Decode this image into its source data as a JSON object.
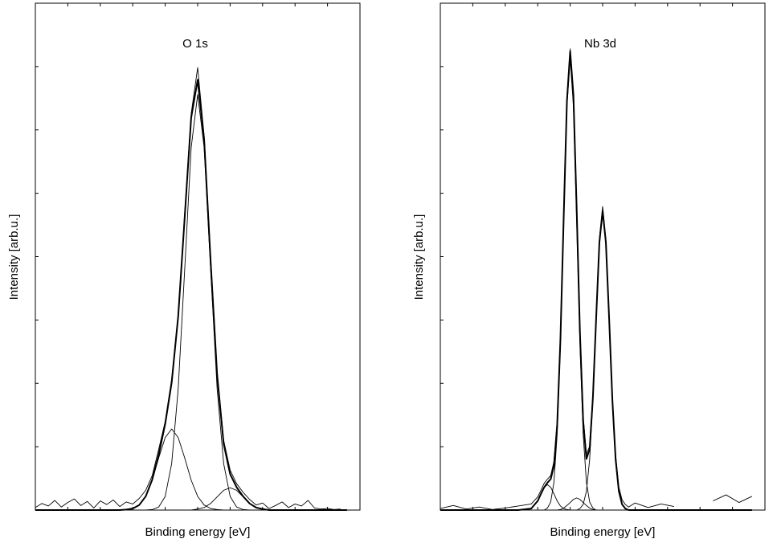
{
  "chart_data": [
    {
      "type": "line",
      "title": "O 1s",
      "x_label": "Binding energy [eV]",
      "y_label": "Intensity [arb.u.]",
      "xlim": [
        0,
        100
      ],
      "ylim": [
        0,
        100
      ],
      "xticks": [
        10,
        20,
        30,
        40,
        50,
        60,
        70,
        80,
        90
      ],
      "yticks": [
        12.5,
        25,
        37.5,
        50,
        62.5,
        75,
        87.5
      ],
      "x": [
        0,
        2,
        4,
        6,
        8,
        10,
        12,
        14,
        16,
        18,
        20,
        22,
        24,
        26,
        28,
        30,
        32,
        34,
        36,
        38,
        40,
        42,
        44,
        46,
        48,
        50,
        52,
        54,
        56,
        58,
        60,
        62,
        64,
        66,
        68,
        70,
        72,
        74,
        76,
        78,
        80,
        82,
        84,
        86,
        88,
        90,
        92,
        94,
        96
      ],
      "series": [
        {
          "color": "#000000",
          "values": [
            0.5,
            1.3,
            0.8,
            1.9,
            0.6,
            1.5,
            2.2,
            0.9,
            1.7,
            0.4,
            1.8,
            1.1,
            2.0,
            0.7,
            1.6,
            1.2,
            2.3,
            3.9,
            6.8,
            12.0,
            17.5,
            25.9,
            38.6,
            58.5,
            78.2,
            87.3,
            73.8,
            49.9,
            27.4,
            13.8,
            7.9,
            5.2,
            3.5,
            2.1,
            1.0,
            1.4,
            0.3,
            0.9,
            1.6,
            0.5,
            1.2,
            0.8,
            1.9,
            0.4,
            0.2,
            0.3,
            0.1,
            0.2,
            null
          ]
        },
        {
          "color": "#000000",
          "values": [
            0,
            0,
            0,
            0,
            0,
            0,
            0,
            0,
            0,
            0,
            0,
            0,
            0,
            0,
            0.1,
            0.3,
            1.0,
            2.7,
            6.0,
            10.9,
            17.0,
            25.2,
            38.2,
            57.7,
            77.4,
            84.9,
            73.0,
            49.0,
            26.6,
            13.1,
            7.1,
            4.5,
            2.7,
            1.3,
            0.5,
            0.2,
            0,
            0,
            0,
            0,
            0,
            0,
            0,
            0,
            0,
            0,
            0,
            0,
            0
          ]
        },
        {
          "color": "#000000",
          "values": [
            0,
            0,
            0,
            0,
            0,
            0,
            0,
            0,
            0,
            0,
            0,
            0,
            0,
            0,
            0,
            0,
            0,
            0,
            0.1,
            0.6,
            2.7,
            9.2,
            23.9,
            47.4,
            71.5,
            82,
            71.5,
            47.4,
            23.9,
            9.2,
            2.7,
            0.6,
            0.1,
            0,
            0,
            0,
            0,
            0,
            0,
            0,
            0,
            0,
            0,
            0,
            0,
            0,
            0,
            0,
            0
          ]
        },
        {
          "color": "#000000",
          "values": [
            0,
            0,
            0,
            0,
            0,
            0,
            0,
            0,
            0,
            0,
            0,
            0,
            0,
            0,
            0.1,
            0.3,
            1.0,
            2.7,
            5.9,
            10.3,
            14.3,
            16,
            14.3,
            10.3,
            5.9,
            2.7,
            1.0,
            0.3,
            0.1,
            0,
            0,
            0,
            0,
            0,
            0,
            0,
            0,
            0,
            0,
            0,
            0,
            0,
            0,
            0,
            0,
            0,
            0,
            0,
            0
          ]
        },
        {
          "color": "#000000",
          "values": [
            0,
            0,
            0,
            0,
            0,
            0,
            0,
            0,
            0,
            0,
            0,
            0,
            0,
            0,
            0,
            0,
            0,
            0,
            0,
            0,
            0,
            0,
            0,
            0,
            0,
            0.2,
            0.5,
            1.3,
            2.6,
            3.9,
            4.4,
            3.9,
            2.6,
            1.3,
            0.5,
            0.2,
            0,
            0,
            0,
            0,
            0,
            0,
            0,
            0,
            0,
            0,
            0,
            0,
            0
          ]
        }
      ]
    },
    {
      "type": "line",
      "title": "Nb 3d",
      "x_label": "Binding energy [eV]",
      "y_label": "Intensity [arb.u.]",
      "xlim": [
        0,
        100
      ],
      "ylim": [
        0,
        100
      ],
      "xticks": [
        10,
        20,
        30,
        40,
        50,
        60,
        70,
        80,
        90
      ],
      "yticks": [
        12.5,
        25,
        37.5,
        50,
        62.5,
        75,
        87.5
      ],
      "x": [
        0,
        4,
        8,
        12,
        16,
        20,
        24,
        28,
        30,
        31,
        32,
        33,
        34,
        35,
        36,
        37,
        38,
        39,
        40,
        41,
        42,
        43,
        44,
        45,
        46,
        47,
        48,
        49,
        50,
        51,
        52,
        53,
        54,
        55,
        56,
        57,
        58,
        60,
        64,
        68,
        72,
        76,
        80,
        84,
        88,
        92,
        96
      ],
      "series": [
        {
          "color": "#000000",
          "values": [
            0.3,
            0.9,
            0.2,
            0.6,
            0.1,
            0.4,
            0.8,
            1.2,
            2.6,
            3.9,
            5.3,
            6.1,
            6.8,
            9.6,
            17.5,
            34.6,
            58.3,
            81.4,
            91.0,
            82.5,
            60.1,
            35.9,
            18.4,
            11.0,
            12.6,
            23.1,
            38.5,
            53.6,
            59.9,
            53.4,
            38.6,
            22.4,
            10.9,
            4.5,
            2.0,
            1.1,
            0.6,
            1.4,
            0.5,
            1.2,
            0.7,
            null,
            null,
            1.8,
            3.0,
            1.5,
            2.7
          ]
        },
        {
          "color": "#000000",
          "values": [
            0,
            0,
            0,
            0,
            0,
            0,
            0,
            0.3,
            1.8,
            3.2,
            4.5,
            5.4,
            6.1,
            8.7,
            16.8,
            33.7,
            57.7,
            80.7,
            90.5,
            81.8,
            59.4,
            35.2,
            17.6,
            10.1,
            12.0,
            22.2,
            37.8,
            52.8,
            59,
            52.8,
            37.8,
            21.7,
            10.0,
            3.7,
            1.1,
            0.3,
            0,
            0,
            0,
            0,
            0,
            0,
            0,
            0,
            0,
            0,
            0
          ]
        },
        {
          "color": "#000000",
          "values": [
            0,
            0,
            0,
            0,
            0,
            0,
            0,
            0,
            0,
            0,
            0,
            0.4,
            1.6,
            5.5,
            15,
            32.8,
            57,
            79.7,
            89,
            79.7,
            57,
            32.8,
            15,
            5.5,
            1.6,
            0.4,
            0,
            0,
            0,
            0,
            0,
            0,
            0,
            0,
            0,
            0,
            0,
            0,
            0,
            0,
            0,
            0,
            0,
            0,
            0,
            0,
            0
          ]
        },
        {
          "color": "#000000",
          "values": [
            0,
            0,
            0,
            0,
            0,
            0,
            0,
            0,
            0,
            0,
            0,
            0,
            0,
            0,
            0,
            0,
            0,
            0,
            0,
            0,
            0,
            0.3,
            1.1,
            3.7,
            10.0,
            21.7,
            37.8,
            52.8,
            59,
            52.8,
            37.8,
            21.7,
            10.0,
            3.7,
            1.1,
            0.3,
            0,
            0,
            0,
            0,
            0,
            0,
            0,
            0,
            0,
            0,
            0
          ]
        },
        {
          "color": "#000000",
          "values": [
            0,
            0,
            0,
            0,
            0,
            0,
            0,
            0.3,
            1.8,
            3.2,
            4.5,
            5,
            4.5,
            3.2,
            1.8,
            0.8,
            0.3,
            0.1,
            0,
            0,
            0,
            0,
            0,
            0,
            0,
            0,
            0,
            0,
            0,
            0,
            0,
            0,
            0,
            0,
            0,
            0,
            0,
            0,
            0,
            0,
            0,
            0,
            0,
            0,
            0,
            0,
            0
          ]
        },
        {
          "color": "#000000",
          "values": [
            0,
            0,
            0,
            0,
            0,
            0,
            0,
            0,
            0,
            0,
            0,
            0,
            0,
            0,
            0,
            0.1,
            0.4,
            0.9,
            1.5,
            2.1,
            2.4,
            2.1,
            1.5,
            0.9,
            0.4,
            0.1,
            0,
            0,
            0,
            0,
            0,
            0,
            0,
            0,
            0,
            0,
            0,
            0,
            0,
            0,
            0,
            0,
            0,
            0,
            0,
            0,
            0
          ]
        }
      ]
    }
  ]
}
